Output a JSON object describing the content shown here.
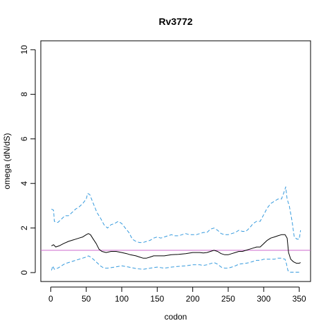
{
  "chart_data": {
    "type": "line",
    "title": "Rv3772",
    "xlabel": "codon",
    "ylabel": "omega (dN/dS)",
    "xlim": [
      -14,
      366
    ],
    "ylim": [
      -0.4,
      10.4
    ],
    "xticks": [
      0,
      50,
      100,
      150,
      200,
      250,
      300,
      350
    ],
    "yticks": [
      0,
      2,
      4,
      6,
      8,
      10
    ],
    "xtick_labels": [
      "0",
      "50",
      "100",
      "150",
      "200",
      "250",
      "300",
      "350"
    ],
    "ytick_labels": [
      "0",
      "2",
      "4",
      "6",
      "8",
      "10"
    ],
    "grid": false,
    "reference_line": {
      "y": 1.0,
      "color": "#cc66cc"
    },
    "series": [
      {
        "role": "upper",
        "style": "dashed",
        "color": "#3399dd",
        "points": [
          [
            1,
            2.85
          ],
          [
            4,
            2.8
          ],
          [
            5,
            2.3
          ],
          [
            10,
            2.25
          ],
          [
            15,
            2.4
          ],
          [
            20,
            2.55
          ],
          [
            25,
            2.55
          ],
          [
            30,
            2.7
          ],
          [
            35,
            2.85
          ],
          [
            40,
            2.95
          ],
          [
            45,
            3.1
          ],
          [
            50,
            3.3
          ],
          [
            52,
            3.55
          ],
          [
            55,
            3.5
          ],
          [
            60,
            3.1
          ],
          [
            65,
            2.7
          ],
          [
            70,
            2.45
          ],
          [
            75,
            2.15
          ],
          [
            80,
            2.0
          ],
          [
            85,
            2.15
          ],
          [
            90,
            2.2
          ],
          [
            95,
            2.3
          ],
          [
            100,
            2.2
          ],
          [
            105,
            2.0
          ],
          [
            110,
            1.8
          ],
          [
            115,
            1.5
          ],
          [
            120,
            1.4
          ],
          [
            125,
            1.35
          ],
          [
            130,
            1.35
          ],
          [
            135,
            1.4
          ],
          [
            140,
            1.45
          ],
          [
            145,
            1.55
          ],
          [
            150,
            1.6
          ],
          [
            155,
            1.55
          ],
          [
            160,
            1.6
          ],
          [
            165,
            1.65
          ],
          [
            170,
            1.7
          ],
          [
            175,
            1.65
          ],
          [
            180,
            1.65
          ],
          [
            185,
            1.7
          ],
          [
            190,
            1.75
          ],
          [
            195,
            1.7
          ],
          [
            200,
            1.7
          ],
          [
            205,
            1.7
          ],
          [
            210,
            1.75
          ],
          [
            215,
            1.8
          ],
          [
            220,
            1.8
          ],
          [
            225,
            1.95
          ],
          [
            230,
            2.0
          ],
          [
            235,
            1.9
          ],
          [
            240,
            1.75
          ],
          [
            245,
            1.7
          ],
          [
            250,
            1.7
          ],
          [
            255,
            1.75
          ],
          [
            260,
            1.8
          ],
          [
            265,
            1.9
          ],
          [
            270,
            1.85
          ],
          [
            275,
            1.85
          ],
          [
            280,
            2.0
          ],
          [
            285,
            2.2
          ],
          [
            290,
            2.3
          ],
          [
            295,
            2.3
          ],
          [
            300,
            2.6
          ],
          [
            305,
            2.9
          ],
          [
            310,
            3.1
          ],
          [
            315,
            3.2
          ],
          [
            320,
            3.3
          ],
          [
            325,
            3.3
          ],
          [
            328,
            3.55
          ],
          [
            331,
            3.85
          ],
          [
            333,
            3.3
          ],
          [
            336,
            3.0
          ],
          [
            340,
            2.3
          ],
          [
            343,
            1.6
          ],
          [
            347,
            1.5
          ],
          [
            350,
            1.5
          ],
          [
            352,
            1.9
          ]
        ]
      },
      {
        "role": "estimate",
        "style": "solid",
        "color": "#000000",
        "points": [
          [
            1,
            1.2
          ],
          [
            4,
            1.25
          ],
          [
            7,
            1.15
          ],
          [
            12,
            1.2
          ],
          [
            18,
            1.3
          ],
          [
            25,
            1.4
          ],
          [
            30,
            1.45
          ],
          [
            35,
            1.5
          ],
          [
            40,
            1.55
          ],
          [
            45,
            1.6
          ],
          [
            50,
            1.7
          ],
          [
            53,
            1.75
          ],
          [
            56,
            1.7
          ],
          [
            60,
            1.5
          ],
          [
            64,
            1.3
          ],
          [
            68,
            1.05
          ],
          [
            72,
            0.95
          ],
          [
            78,
            0.9
          ],
          [
            85,
            0.95
          ],
          [
            92,
            0.95
          ],
          [
            100,
            0.9
          ],
          [
            107,
            0.85
          ],
          [
            112,
            0.8
          ],
          [
            120,
            0.75
          ],
          [
            125,
            0.7
          ],
          [
            130,
            0.65
          ],
          [
            135,
            0.65
          ],
          [
            140,
            0.7
          ],
          [
            145,
            0.75
          ],
          [
            150,
            0.75
          ],
          [
            160,
            0.75
          ],
          [
            170,
            0.8
          ],
          [
            180,
            0.82
          ],
          [
            190,
            0.85
          ],
          [
            200,
            0.9
          ],
          [
            210,
            0.9
          ],
          [
            215,
            0.88
          ],
          [
            220,
            0.9
          ],
          [
            225,
            0.95
          ],
          [
            230,
            1.0
          ],
          [
            235,
            0.95
          ],
          [
            240,
            0.85
          ],
          [
            245,
            0.8
          ],
          [
            250,
            0.8
          ],
          [
            255,
            0.85
          ],
          [
            260,
            0.9
          ],
          [
            265,
            0.95
          ],
          [
            270,
            0.95
          ],
          [
            275,
            1.0
          ],
          [
            280,
            1.05
          ],
          [
            285,
            1.1
          ],
          [
            290,
            1.15
          ],
          [
            295,
            1.15
          ],
          [
            300,
            1.3
          ],
          [
            305,
            1.45
          ],
          [
            310,
            1.55
          ],
          [
            315,
            1.6
          ],
          [
            320,
            1.65
          ],
          [
            325,
            1.7
          ],
          [
            330,
            1.7
          ],
          [
            333,
            1.55
          ],
          [
            335,
            0.9
          ],
          [
            338,
            0.6
          ],
          [
            342,
            0.48
          ],
          [
            346,
            0.42
          ],
          [
            350,
            0.42
          ],
          [
            352,
            0.45
          ]
        ]
      },
      {
        "role": "lower",
        "style": "dashed",
        "color": "#3399dd",
        "points": [
          [
            1,
            0.1
          ],
          [
            3,
            0.3
          ],
          [
            5,
            0.15
          ],
          [
            10,
            0.2
          ],
          [
            15,
            0.3
          ],
          [
            20,
            0.4
          ],
          [
            25,
            0.45
          ],
          [
            30,
            0.5
          ],
          [
            35,
            0.55
          ],
          [
            40,
            0.6
          ],
          [
            45,
            0.65
          ],
          [
            50,
            0.7
          ],
          [
            53,
            0.75
          ],
          [
            56,
            0.7
          ],
          [
            60,
            0.6
          ],
          [
            65,
            0.45
          ],
          [
            70,
            0.3
          ],
          [
            75,
            0.2
          ],
          [
            80,
            0.2
          ],
          [
            90,
            0.25
          ],
          [
            100,
            0.3
          ],
          [
            110,
            0.25
          ],
          [
            120,
            0.18
          ],
          [
            130,
            0.15
          ],
          [
            140,
            0.2
          ],
          [
            150,
            0.25
          ],
          [
            160,
            0.2
          ],
          [
            170,
            0.25
          ],
          [
            180,
            0.28
          ],
          [
            190,
            0.3
          ],
          [
            200,
            0.35
          ],
          [
            210,
            0.35
          ],
          [
            215,
            0.32
          ],
          [
            220,
            0.35
          ],
          [
            225,
            0.4
          ],
          [
            230,
            0.45
          ],
          [
            235,
            0.38
          ],
          [
            240,
            0.25
          ],
          [
            245,
            0.2
          ],
          [
            250,
            0.2
          ],
          [
            255,
            0.25
          ],
          [
            260,
            0.3
          ],
          [
            265,
            0.38
          ],
          [
            270,
            0.4
          ],
          [
            275,
            0.42
          ],
          [
            280,
            0.45
          ],
          [
            285,
            0.5
          ],
          [
            290,
            0.55
          ],
          [
            295,
            0.55
          ],
          [
            300,
            0.6
          ],
          [
            305,
            0.6
          ],
          [
            310,
            0.6
          ],
          [
            315,
            0.6
          ],
          [
            320,
            0.65
          ],
          [
            325,
            0.65
          ],
          [
            330,
            0.6
          ],
          [
            332,
            0.4
          ],
          [
            334,
            0.1
          ],
          [
            336,
            0.02
          ],
          [
            345,
            0.02
          ],
          [
            352,
            0.02
          ]
        ]
      }
    ]
  }
}
